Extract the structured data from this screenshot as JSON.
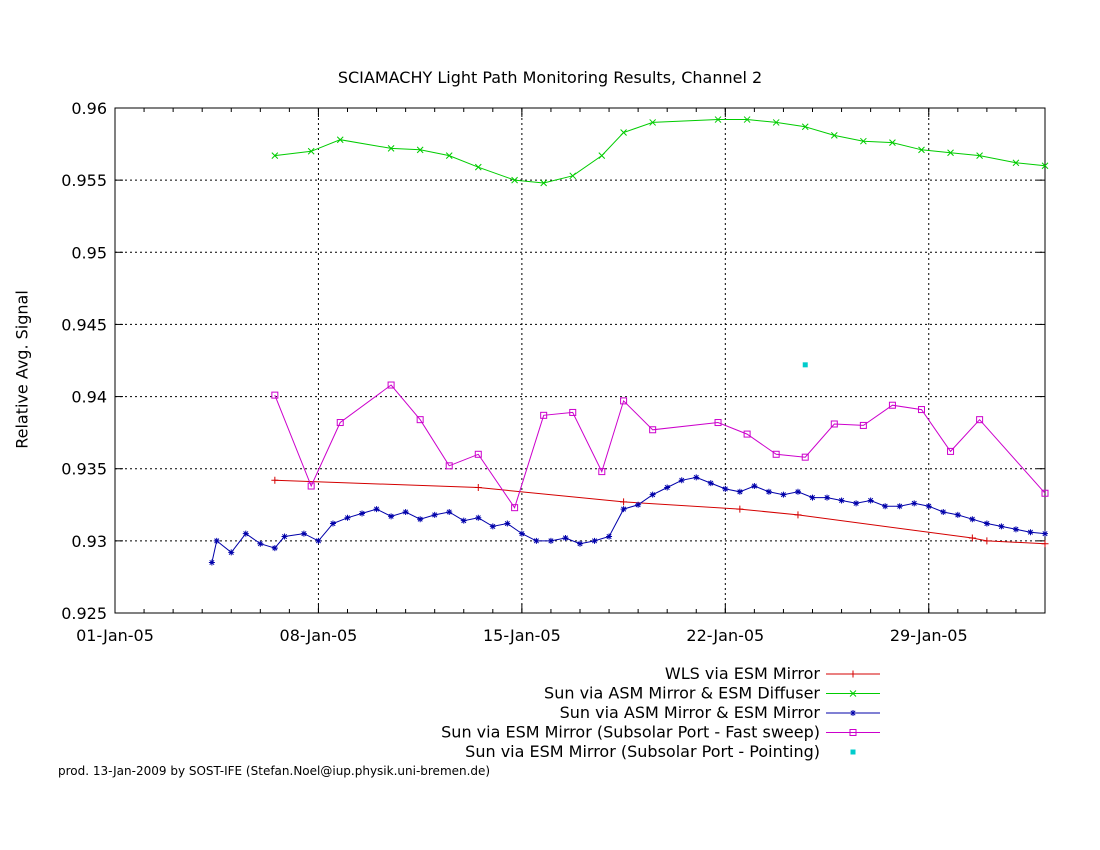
{
  "chart_data": {
    "type": "line",
    "title": "SCIAMACHY Light Path Monitoring Results, Channel 2",
    "xlabel": "",
    "ylabel": "Relative Avg. Signal",
    "xlim": [
      "2005-01-01",
      "2005-02-02"
    ],
    "ylim": [
      0.925,
      0.96
    ],
    "y_ticks": [
      "0.925",
      "0.93",
      "0.935",
      "0.94",
      "0.945",
      "0.95",
      "0.955",
      "0.96"
    ],
    "x_ticks": [
      "01-Jan-05",
      "08-Jan-05",
      "15-Jan-05",
      "22-Jan-05",
      "29-Jan-05"
    ],
    "grid": true,
    "legend_position": "bottom-right",
    "series": [
      {
        "name": "WLS via ESM Mirror",
        "color": "#d40000",
        "marker": "plus",
        "x": [
          "2005-01-06T12:00",
          "2005-01-13T12:00",
          "2005-01-18T12:00",
          "2005-01-22T12:00",
          "2005-01-24T12:00",
          "2005-01-30T12:00",
          "2005-01-31T00:00",
          "2005-02-02T00:00"
        ],
        "y": [
          0.9342,
          0.9337,
          0.9327,
          0.9322,
          0.9318,
          0.9302,
          0.93,
          0.9298
        ]
      },
      {
        "name": "Sun via ASM Mirror & ESM Diffuser",
        "color": "#00cc00",
        "marker": "x",
        "x": [
          "2005-01-06T12:00",
          "2005-01-07T18:00",
          "2005-01-08T18:00",
          "2005-01-10T12:00",
          "2005-01-11T12:00",
          "2005-01-12T12:00",
          "2005-01-13T12:00",
          "2005-01-14T18:00",
          "2005-01-15T18:00",
          "2005-01-16T18:00",
          "2005-01-17T18:00",
          "2005-01-18T12:00",
          "2005-01-19T12:00",
          "2005-01-21T18:00",
          "2005-01-22T18:00",
          "2005-01-23T18:00",
          "2005-01-24T18:00",
          "2005-01-25T18:00",
          "2005-01-26T18:00",
          "2005-01-27T18:00",
          "2005-01-28T18:00",
          "2005-01-29T18:00",
          "2005-01-30T18:00",
          "2005-02-01T00:00",
          "2005-02-02T00:00"
        ],
        "y": [
          0.9567,
          0.957,
          0.9578,
          0.9572,
          0.9571,
          0.9567,
          0.9559,
          0.955,
          0.9548,
          0.9553,
          0.9567,
          0.9583,
          0.959,
          0.9592,
          0.9592,
          0.959,
          0.9587,
          0.9581,
          0.9577,
          0.9576,
          0.9571,
          0.9569,
          0.9567,
          0.9562,
          0.956
        ]
      },
      {
        "name": "Sun via ASM Mirror & ESM Mirror",
        "color": "#0000aa",
        "marker": "star",
        "x": [
          "2005-01-04T08:00",
          "2005-01-04T12:00",
          "2005-01-05T00:00",
          "2005-01-05T12:00",
          "2005-01-06T00:00",
          "2005-01-06T12:00",
          "2005-01-06T20:00",
          "2005-01-07T12:00",
          "2005-01-08T00:00",
          "2005-01-08T12:00",
          "2005-01-09T00:00",
          "2005-01-09T12:00",
          "2005-01-10T00:00",
          "2005-01-10T12:00",
          "2005-01-11T00:00",
          "2005-01-11T12:00",
          "2005-01-12T00:00",
          "2005-01-12T12:00",
          "2005-01-13T00:00",
          "2005-01-13T12:00",
          "2005-01-14T00:00",
          "2005-01-14T12:00",
          "2005-01-15T00:00",
          "2005-01-15T12:00",
          "2005-01-16T00:00",
          "2005-01-16T12:00",
          "2005-01-17T00:00",
          "2005-01-17T12:00",
          "2005-01-18T00:00",
          "2005-01-18T12:00",
          "2005-01-19T00:00",
          "2005-01-19T12:00",
          "2005-01-20T00:00",
          "2005-01-20T12:00",
          "2005-01-21T00:00",
          "2005-01-21T12:00",
          "2005-01-22T00:00",
          "2005-01-22T12:00",
          "2005-01-23T00:00",
          "2005-01-23T12:00",
          "2005-01-24T00:00",
          "2005-01-24T12:00",
          "2005-01-25T00:00",
          "2005-01-25T12:00",
          "2005-01-26T00:00",
          "2005-01-26T12:00",
          "2005-01-27T00:00",
          "2005-01-27T12:00",
          "2005-01-28T00:00",
          "2005-01-28T12:00",
          "2005-01-29T00:00",
          "2005-01-29T12:00",
          "2005-01-30T00:00",
          "2005-01-30T12:00",
          "2005-01-31T00:00",
          "2005-01-31T12:00",
          "2005-02-01T00:00",
          "2005-02-01T12:00",
          "2005-02-02T00:00"
        ],
        "y": [
          0.9285,
          0.93,
          0.9292,
          0.9305,
          0.9298,
          0.9295,
          0.9303,
          0.9305,
          0.93,
          0.9312,
          0.9316,
          0.9319,
          0.9322,
          0.9317,
          0.932,
          0.9315,
          0.9318,
          0.932,
          0.9314,
          0.9316,
          0.931,
          0.9312,
          0.9305,
          0.93,
          0.93,
          0.9302,
          0.9298,
          0.93,
          0.9303,
          0.9322,
          0.9325,
          0.9332,
          0.9337,
          0.9342,
          0.9344,
          0.934,
          0.9336,
          0.9334,
          0.9338,
          0.9334,
          0.9332,
          0.9334,
          0.933,
          0.933,
          0.9328,
          0.9326,
          0.9328,
          0.9324,
          0.9324,
          0.9326,
          0.9324,
          0.932,
          0.9318,
          0.9315,
          0.9312,
          0.931,
          0.9308,
          0.9306,
          0.9305
        ]
      },
      {
        "name": "Sun via ESM Mirror (Subsolar Port - Fast sweep)",
        "color": "#cc00cc",
        "marker": "square",
        "x": [
          "2005-01-06T12:00",
          "2005-01-07T18:00",
          "2005-01-08T18:00",
          "2005-01-10T12:00",
          "2005-01-11T12:00",
          "2005-01-12T12:00",
          "2005-01-13T12:00",
          "2005-01-14T18:00",
          "2005-01-15T18:00",
          "2005-01-16T18:00",
          "2005-01-17T18:00",
          "2005-01-18T12:00",
          "2005-01-19T12:00",
          "2005-01-21T18:00",
          "2005-01-22T18:00",
          "2005-01-23T18:00",
          "2005-01-24T18:00",
          "2005-01-25T18:00",
          "2005-01-26T18:00",
          "2005-01-27T18:00",
          "2005-01-28T18:00",
          "2005-01-29T18:00",
          "2005-01-30T18:00",
          "2005-02-02T00:00"
        ],
        "y": [
          0.9401,
          0.9338,
          0.9382,
          0.9408,
          0.9384,
          0.9352,
          0.936,
          0.9323,
          0.9387,
          0.9389,
          0.9348,
          0.9397,
          0.9377,
          0.9382,
          0.9374,
          0.936,
          0.9358,
          0.9381,
          0.938,
          0.9394,
          0.9391,
          0.9362,
          0.9384,
          0.9333
        ]
      },
      {
        "name": "Sun via ESM Mirror (Subsolar Port - Pointing)",
        "color": "#00cccc",
        "marker": "dot",
        "x": [
          "2005-01-24T18:00"
        ],
        "y": [
          0.9422
        ]
      }
    ]
  },
  "footer": "prod. 13-Jan-2009 by SOST-IFE (Stefan.Noel@iup.physik.uni-bremen.de)"
}
